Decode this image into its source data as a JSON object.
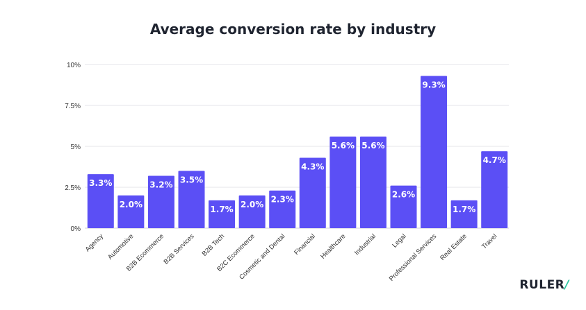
{
  "chart_data": {
    "type": "bar",
    "title": "Average conversion rate by industry",
    "categories": [
      "Agency",
      "Automotive",
      "B2B Ecommerce",
      "B2B Services",
      "B2B Tech",
      "B2C Ecommerce",
      "Cosmetic and Dental",
      "Financial",
      "Healthcare",
      "Industrial",
      "Legal",
      "Professional Services",
      "Real Estate",
      "Travel"
    ],
    "values": [
      3.3,
      2.0,
      3.2,
      3.5,
      1.7,
      2.0,
      2.3,
      4.3,
      5.6,
      5.6,
      2.6,
      9.3,
      1.7,
      4.7
    ],
    "value_labels": [
      "3.3%",
      "2.0%",
      "3.2%",
      "3.5%",
      "1.7%",
      "2.0%",
      "2.3%",
      "4.3%",
      "5.6%",
      "5.6%",
      "2.6%",
      "9.3%",
      "1.7%",
      "4.7%"
    ],
    "y_ticks": [
      0,
      2.5,
      5,
      7.5,
      10
    ],
    "y_tick_labels": [
      "0%",
      "2.5%",
      "5%",
      "7.5%",
      "10%"
    ],
    "ylim": [
      0,
      10
    ],
    "grid": true,
    "bar_color": "#5b4ff5",
    "xlabel": "",
    "ylabel": ""
  },
  "logo": {
    "text": "RULER",
    "mark": "/"
  }
}
